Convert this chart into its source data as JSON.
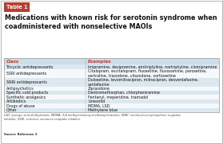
{
  "title": "Medications with known risk for serotonin syndrome when\ncoadministered with nonselective MAOIs",
  "table_label": "Table 1",
  "col_headers": [
    "Class",
    "Examples"
  ],
  "rows": [
    [
      "Tricyclic antidepressants",
      "Imipramine, desipramine, amitriptyline, nortriptyline, clomipramine"
    ],
    [
      "SSRI antidepressants",
      "Citalopram, escitalopram, fluoxetine, fluvoxamine, paroxetine,\nsertraline, trazodone, vilazodone, vortioxetine"
    ],
    [
      "SNRI antidepressants",
      "Duloxetine, levomilnacipran, milnacipran, desvenlafaxine,\nvenlafaxine"
    ],
    [
      "Antipsychotics",
      "Ziprasidone"
    ],
    [
      "Specific cold products",
      "Dextromethorphan, chlorpheniramine"
    ],
    [
      "Synthetic analgesics",
      "Fentanyl, meperidine, tramadol"
    ],
    [
      "Antibiotics",
      "Linezolid"
    ],
    [
      "Drugs of abuse",
      "MDMA, LSD"
    ],
    [
      "Other",
      "Methylene blue"
    ]
  ],
  "footnote": "LSD: lysergic acid diethylamide; MDMA: 3,4-methylenedioxy-methamphetamine; SNRI: serotonin-norepinephrine reuptake\ninhibitor; SSRI: selective serotonin reuptake inhibitor",
  "source": "Source: Reference 3",
  "col_header_color": "#c0392b",
  "row_alt_color": "#dce8f0",
  "row_white_color": "#f5f9fc",
  "bg_color": "#ffffff",
  "table_label_bg": "#c0392b",
  "table_label_text": "#ffffff",
  "col_split": 0.38
}
